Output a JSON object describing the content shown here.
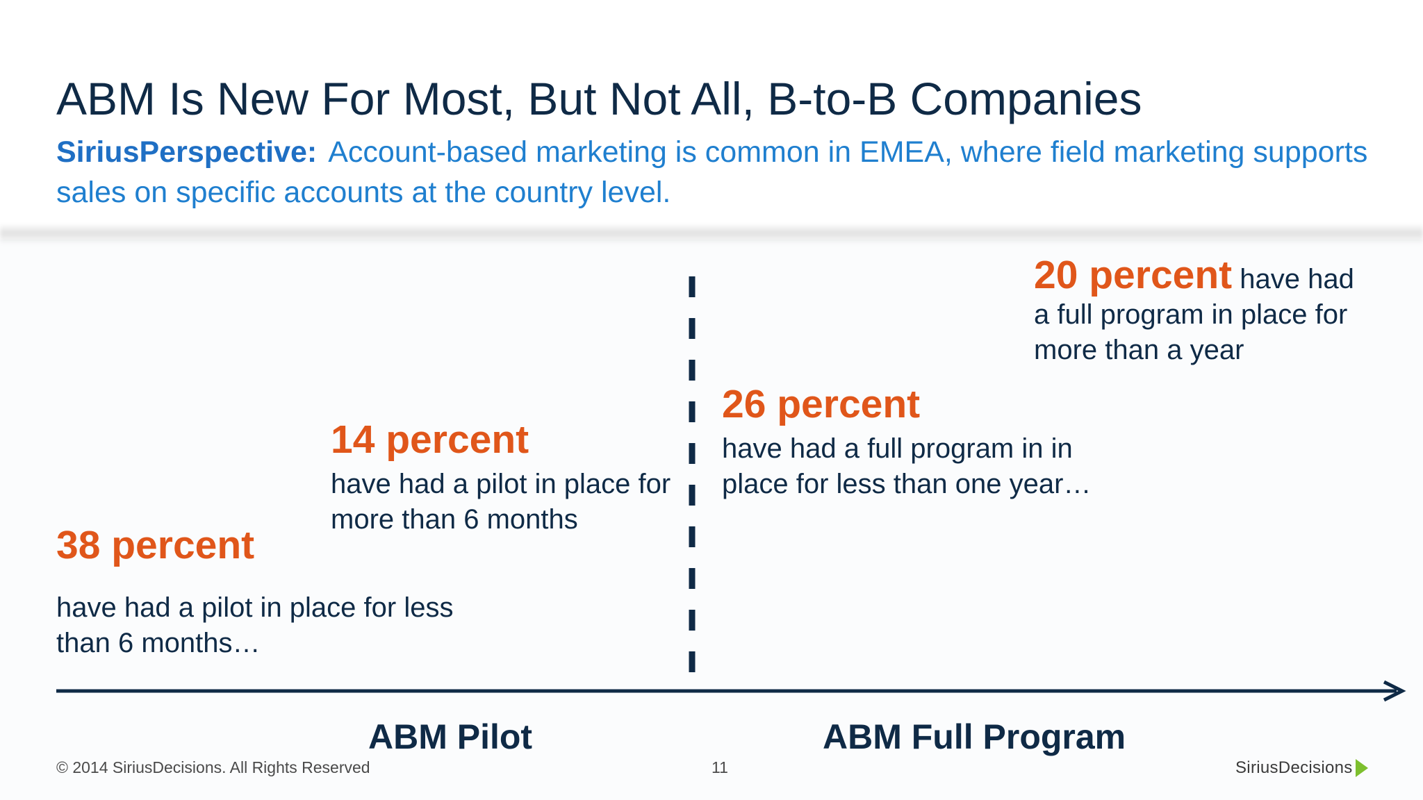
{
  "title": "ABM Is New For Most, But Not All, B-to-B Companies",
  "perspective": {
    "label": "SiriusPerspective:",
    "text": "Account-based marketing is common in EMEA, where field marketing supports sales on specific accounts at the country level."
  },
  "stats": {
    "s38": {
      "value": "38 percent",
      "desc": "have had a pilot in place for less than 6 months…"
    },
    "s14": {
      "value": "14 percent",
      "desc": "have had a pilot in place for more than 6 months"
    },
    "s26": {
      "value": "26 percent",
      "desc": "have had a full program in in place for less than one year…"
    },
    "s20": {
      "value": "20 percent",
      "desc_inline": "have had",
      "desc_rest": "a full program in place for more than a year"
    }
  },
  "timeline": {
    "left_label": "ABM Pilot",
    "right_label": "ABM Full Program"
  },
  "footer": {
    "copyright": "© 2014 SiriusDecisions. All Rights Reserved",
    "page_number": "11",
    "logo_text": "SiriusDecisions"
  },
  "colors": {
    "title": "#0f2a46",
    "accent_orange": "#e0561a",
    "perspective_blue": "#1f7fcf",
    "axis": "#0f2a46",
    "logo_green": "#7dbf2e"
  }
}
